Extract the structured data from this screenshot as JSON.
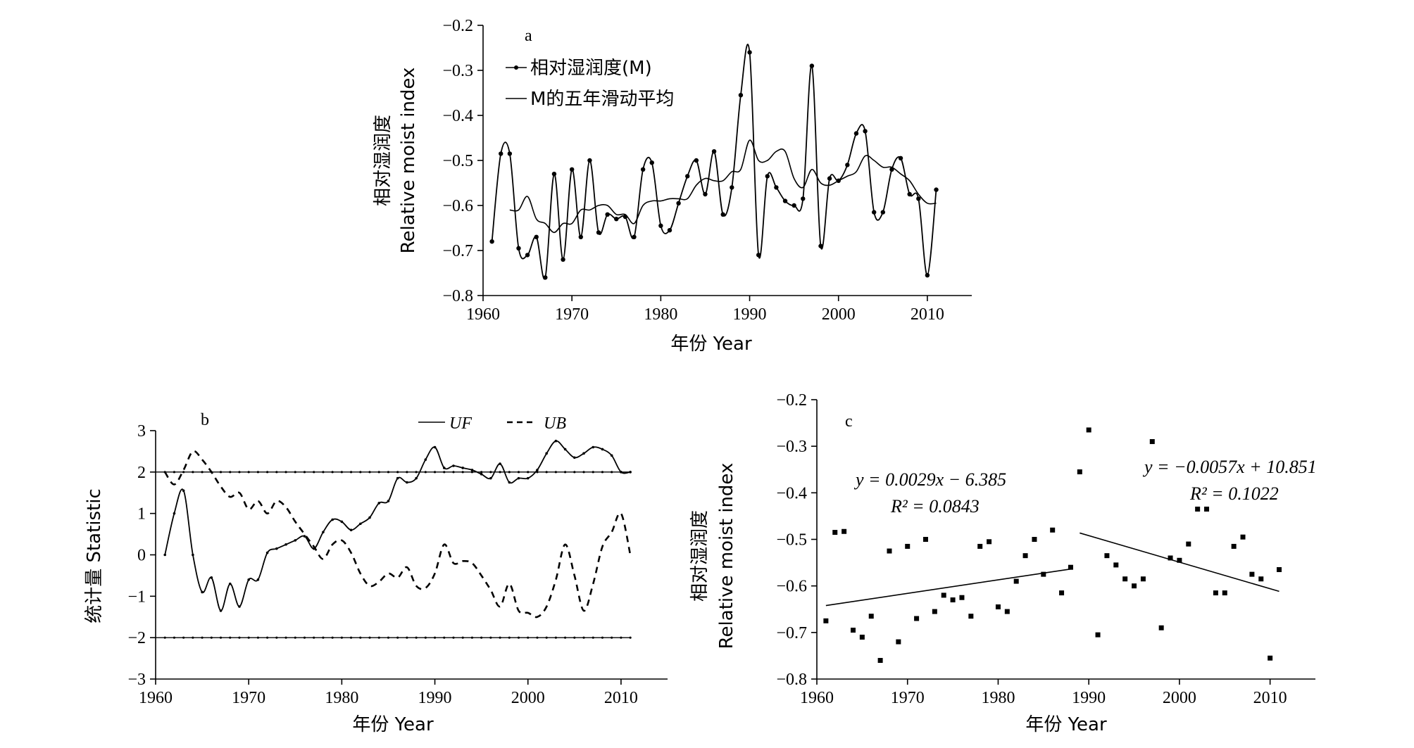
{
  "chart_data": [
    {
      "type": "line",
      "panel_label": "a",
      "ylabel_cn": "相对湿润度",
      "ylabel_en": "Relative moist index",
      "xlabel": "年份 Year",
      "xlim": [
        1960,
        2015
      ],
      "ylim": [
        -0.8,
        -0.2
      ],
      "x_ticks": [
        1960,
        1970,
        1980,
        1990,
        2000,
        2010
      ],
      "y_ticks": [
        -0.8,
        -0.7,
        -0.6,
        -0.5,
        -0.4,
        -0.3,
        -0.2
      ],
      "legend_position": "top-left",
      "series": [
        {
          "name": "相对湿润度(M)",
          "style": "line-with-markers",
          "x": [
            1961,
            1962,
            1963,
            1964,
            1965,
            1966,
            1967,
            1968,
            1969,
            1970,
            1971,
            1972,
            1973,
            1974,
            1975,
            1976,
            1977,
            1978,
            1979,
            1980,
            1981,
            1982,
            1983,
            1984,
            1985,
            1986,
            1987,
            1988,
            1989,
            1990,
            1991,
            1992,
            1993,
            1994,
            1995,
            1996,
            1997,
            1998,
            1999,
            2000,
            2001,
            2002,
            2003,
            2004,
            2005,
            2006,
            2007,
            2008,
            2009,
            2010,
            2011
          ],
          "values": [
            -0.68,
            -0.485,
            -0.485,
            -0.695,
            -0.71,
            -0.67,
            -0.76,
            -0.53,
            -0.72,
            -0.52,
            -0.67,
            -0.5,
            -0.66,
            -0.62,
            -0.63,
            -0.625,
            -0.67,
            -0.52,
            -0.505,
            -0.645,
            -0.655,
            -0.595,
            -0.535,
            -0.5,
            -0.575,
            -0.48,
            -0.62,
            -0.56,
            -0.355,
            -0.26,
            -0.71,
            -0.535,
            -0.56,
            -0.59,
            -0.6,
            -0.585,
            -0.29,
            -0.69,
            -0.54,
            -0.545,
            -0.51,
            -0.44,
            -0.435,
            -0.615,
            -0.615,
            -0.52,
            -0.495,
            -0.575,
            -0.585,
            -0.755,
            -0.565
          ]
        },
        {
          "name": "M的五年滑动平均",
          "style": "line",
          "x": [
            1963,
            1964,
            1965,
            1966,
            1967,
            1968,
            1969,
            1970,
            1971,
            1972,
            1973,
            1974,
            1975,
            1976,
            1977,
            1978,
            1979,
            1980,
            1981,
            1982,
            1983,
            1984,
            1985,
            1986,
            1987,
            1988,
            1989,
            1990,
            1991,
            1992,
            1993,
            1994,
            1995,
            1996,
            1997,
            1998,
            1999,
            2000,
            2001,
            2002,
            2003,
            2004,
            2005,
            2006,
            2007,
            2008,
            2009,
            2010,
            2011
          ],
          "values": [
            -0.61,
            -0.61,
            -0.58,
            -0.63,
            -0.64,
            -0.66,
            -0.64,
            -0.64,
            -0.61,
            -0.61,
            -0.6,
            -0.6,
            -0.62,
            -0.62,
            -0.64,
            -0.6,
            -0.59,
            -0.59,
            -0.585,
            -0.585,
            -0.585,
            -0.555,
            -0.54,
            -0.545,
            -0.545,
            -0.525,
            -0.52,
            -0.455,
            -0.5,
            -0.5,
            -0.48,
            -0.48,
            -0.54,
            -0.56,
            -0.52,
            -0.55,
            -0.555,
            -0.545,
            -0.535,
            -0.525,
            -0.49,
            -0.5,
            -0.515,
            -0.515,
            -0.53,
            -0.545,
            -0.575,
            -0.595,
            -0.595
          ]
        }
      ]
    },
    {
      "type": "line",
      "panel_label": "b",
      "ylabel": "统计量 Statistic",
      "xlabel": "年份 Year",
      "xlim": [
        1960,
        2015
      ],
      "ylim": [
        -3,
        3
      ],
      "x_ticks": [
        1960,
        1970,
        1980,
        1990,
        2000,
        2010
      ],
      "y_ticks": [
        -3,
        -2,
        -1,
        0,
        1,
        2,
        3
      ],
      "legend_position": "top-right",
      "reference_lines": [
        2,
        -2
      ],
      "series": [
        {
          "name": "UF",
          "style": "solid",
          "x": [
            1961,
            1962,
            1963,
            1964,
            1965,
            1966,
            1967,
            1968,
            1969,
            1970,
            1971,
            1972,
            1973,
            1974,
            1975,
            1976,
            1977,
            1978,
            1979,
            1980,
            1981,
            1982,
            1983,
            1984,
            1985,
            1986,
            1987,
            1988,
            1989,
            1990,
            1991,
            1992,
            1993,
            1994,
            1995,
            1996,
            1997,
            1998,
            1999,
            2000,
            2001,
            2002,
            2003,
            2004,
            2005,
            2006,
            2007,
            2008,
            2009,
            2010,
            2011
          ],
          "values": [
            0,
            1.0,
            1.55,
            0.0,
            -0.9,
            -0.55,
            -1.35,
            -0.7,
            -1.25,
            -0.6,
            -0.6,
            0.05,
            0.15,
            0.25,
            0.35,
            0.45,
            0.15,
            0.55,
            0.85,
            0.8,
            0.6,
            0.75,
            0.9,
            1.25,
            1.3,
            1.85,
            1.75,
            1.85,
            2.3,
            2.6,
            2.1,
            2.15,
            2.1,
            2.05,
            1.95,
            1.85,
            2.2,
            1.75,
            1.85,
            1.85,
            2.05,
            2.45,
            2.75,
            2.55,
            2.35,
            2.45,
            2.6,
            2.55,
            2.4,
            2.0,
            2.0
          ]
        },
        {
          "name": "UB",
          "style": "dashed",
          "x": [
            1961,
            1962,
            1963,
            1964,
            1965,
            1966,
            1967,
            1968,
            1969,
            1970,
            1971,
            1972,
            1973,
            1974,
            1975,
            1976,
            1977,
            1978,
            1979,
            1980,
            1981,
            1982,
            1983,
            1984,
            1985,
            1986,
            1987,
            1988,
            1989,
            1990,
            1991,
            1992,
            1993,
            1994,
            1995,
            1996,
            1997,
            1998,
            1999,
            2000,
            2001,
            2002,
            2003,
            2004,
            2005,
            2006,
            2007,
            2008,
            2009,
            2010,
            2011
          ],
          "values": [
            2.0,
            1.7,
            2.05,
            2.5,
            2.3,
            2.0,
            1.65,
            1.4,
            1.5,
            1.1,
            1.3,
            1.0,
            1.3,
            1.15,
            0.8,
            0.5,
            0.2,
            -0.1,
            0.25,
            0.35,
            0.05,
            -0.45,
            -0.75,
            -0.65,
            -0.45,
            -0.55,
            -0.3,
            -0.75,
            -0.8,
            -0.45,
            0.25,
            -0.2,
            -0.15,
            -0.2,
            -0.5,
            -0.85,
            -1.25,
            -0.7,
            -1.35,
            -1.4,
            -1.5,
            -1.25,
            -0.6,
            0.25,
            -0.5,
            -1.35,
            -0.7,
            0.2,
            0.55,
            1.0,
            0.0
          ]
        }
      ]
    },
    {
      "type": "scatter",
      "panel_label": "c",
      "ylabel_cn": "相对湿润度",
      "ylabel_en": "Relative moist index",
      "xlabel": "年份 Year",
      "xlim": [
        1960,
        2015
      ],
      "ylim": [
        -0.8,
        -0.2
      ],
      "x_ticks": [
        1960,
        1970,
        1980,
        1990,
        2000,
        2010
      ],
      "y_ticks": [
        -0.8,
        -0.7,
        -0.6,
        -0.5,
        -0.4,
        -0.3,
        -0.2
      ],
      "points_x": [
        1961,
        1962,
        1963,
        1964,
        1965,
        1966,
        1967,
        1968,
        1969,
        1970,
        1971,
        1972,
        1973,
        1974,
        1975,
        1976,
        1977,
        1978,
        1979,
        1980,
        1981,
        1982,
        1983,
        1984,
        1985,
        1986,
        1987,
        1988,
        1989,
        1990,
        1991,
        1992,
        1993,
        1994,
        1995,
        1996,
        1997,
        1998,
        1999,
        2000,
        2001,
        2002,
        2003,
        2004,
        2005,
        2006,
        2007,
        2008,
        2009,
        2010,
        2011
      ],
      "points_y": [
        -0.675,
        -0.485,
        -0.483,
        -0.695,
        -0.71,
        -0.665,
        -0.76,
        -0.525,
        -0.72,
        -0.515,
        -0.67,
        -0.5,
        -0.655,
        -0.62,
        -0.63,
        -0.625,
        -0.665,
        -0.515,
        -0.505,
        -0.645,
        -0.655,
        -0.59,
        -0.535,
        -0.5,
        -0.575,
        -0.48,
        -0.615,
        -0.56,
        -0.355,
        -0.265,
        -0.705,
        -0.535,
        -0.555,
        -0.585,
        -0.6,
        -0.585,
        -0.29,
        -0.69,
        -0.54,
        -0.545,
        -0.51,
        -0.435,
        -0.435,
        -0.615,
        -0.615,
        -0.515,
        -0.495,
        -0.575,
        -0.585,
        -0.755,
        -0.565
      ],
      "trend_lines": [
        {
          "x": [
            1961,
            1988
          ],
          "y": [
            -0.6421,
            -0.5638
          ],
          "equation": "y = 0.0029x − 6.385",
          "r2": "R² = 0.0843"
        },
        {
          "x": [
            1989,
            2011
          ],
          "y": [
            -0.4863,
            -0.6117
          ],
          "equation": "y = −0.0057x + 10.851",
          "r2": "R² = 0.1022"
        }
      ]
    }
  ]
}
